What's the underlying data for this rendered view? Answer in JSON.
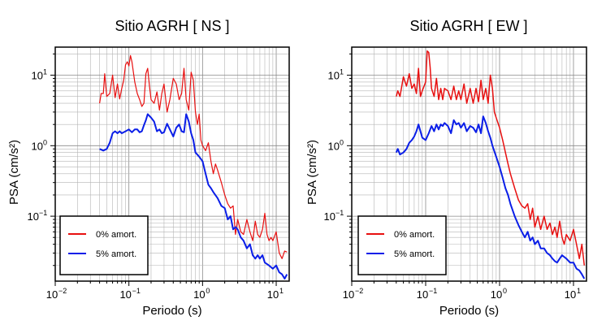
{
  "chart_data": [
    {
      "type": "line",
      "title": "Sitio AGRH [ NS ]",
      "xlabel": "Periodo (s)",
      "ylabel": "PSA (cm/s²)",
      "xscale": "log",
      "yscale": "log",
      "xlim": [
        0.01,
        15
      ],
      "ylim": [
        0.012,
        25
      ],
      "grid": true,
      "legend_position": "bottom-left",
      "x_ticks": [
        {
          "value": 0.01,
          "base": "10",
          "exp": "−2"
        },
        {
          "value": 0.1,
          "base": "10",
          "exp": "−1"
        },
        {
          "value": 1,
          "base": "10",
          "exp": "0"
        },
        {
          "value": 10,
          "base": "10",
          "exp": "1"
        }
      ],
      "y_ticks": [
        {
          "value": 0.1,
          "base": "10",
          "exp": "−1"
        },
        {
          "value": 1,
          "base": "10",
          "exp": "0"
        },
        {
          "value": 10,
          "base": "10",
          "exp": "1"
        }
      ],
      "series": [
        {
          "name": "0% amort.",
          "color": "#e81010",
          "width": 1.2,
          "x": [
            0.04,
            0.042,
            0.045,
            0.047,
            0.05,
            0.055,
            0.06,
            0.065,
            0.07,
            0.075,
            0.08,
            0.085,
            0.09,
            0.095,
            0.1,
            0.105,
            0.11,
            0.12,
            0.13,
            0.14,
            0.15,
            0.16,
            0.17,
            0.18,
            0.19,
            0.2,
            0.22,
            0.24,
            0.26,
            0.28,
            0.3,
            0.33,
            0.36,
            0.4,
            0.44,
            0.48,
            0.52,
            0.56,
            0.6,
            0.65,
            0.7,
            0.75,
            0.8,
            0.85,
            0.9,
            0.95,
            1.0,
            1.1,
            1.2,
            1.3,
            1.4,
            1.5,
            1.6,
            1.8,
            2.0,
            2.2,
            2.4,
            2.6,
            2.8,
            3.0,
            3.3,
            3.6,
            4.0,
            4.4,
            4.8,
            5.2,
            5.6,
            6.0,
            6.5,
            7.0,
            7.5,
            8.0,
            8.5,
            9.0,
            10,
            11,
            12,
            13,
            14
          ],
          "y": [
            4.0,
            5.5,
            5.5,
            10.5,
            5.0,
            5.5,
            10.0,
            4.8,
            7.5,
            4.6,
            6.5,
            8.5,
            14.0,
            15.5,
            13.5,
            19.0,
            15.5,
            8.0,
            5.5,
            4.5,
            3.6,
            4.0,
            10.5,
            12.5,
            7.0,
            4.5,
            4.0,
            5.8,
            3.2,
            5.5,
            7.5,
            3.0,
            4.5,
            9.0,
            7.5,
            4.5,
            5.5,
            12.5,
            4.5,
            3.2,
            11.0,
            8.5,
            3.0,
            2.0,
            2.8,
            1.2,
            1.0,
            0.85,
            1.1,
            0.6,
            0.4,
            0.55,
            0.45,
            0.3,
            0.2,
            0.15,
            0.13,
            0.14,
            0.055,
            0.09,
            0.06,
            0.055,
            0.09,
            0.06,
            0.045,
            0.085,
            0.055,
            0.05,
            0.065,
            0.11,
            0.055,
            0.045,
            0.05,
            0.045,
            0.06,
            0.03,
            0.025,
            0.032,
            0.031
          ]
        },
        {
          "name": "5% amort.",
          "color": "#0a1ee8",
          "width": 2.0,
          "x": [
            0.04,
            0.045,
            0.05,
            0.055,
            0.06,
            0.065,
            0.07,
            0.075,
            0.08,
            0.09,
            0.1,
            0.11,
            0.12,
            0.13,
            0.14,
            0.15,
            0.16,
            0.17,
            0.18,
            0.2,
            0.22,
            0.24,
            0.26,
            0.28,
            0.3,
            0.33,
            0.36,
            0.4,
            0.44,
            0.48,
            0.52,
            0.56,
            0.6,
            0.65,
            0.7,
            0.75,
            0.8,
            0.9,
            1.0,
            1.1,
            1.2,
            1.3,
            1.4,
            1.6,
            1.8,
            2.0,
            2.2,
            2.4,
            2.6,
            2.8,
            3.0,
            3.3,
            3.6,
            4.0,
            4.4,
            4.8,
            5.2,
            5.6,
            6.0,
            6.5,
            7.0,
            8.0,
            9.0,
            10,
            11,
            12,
            13,
            14
          ],
          "y": [
            0.9,
            0.85,
            0.9,
            1.1,
            1.5,
            1.6,
            1.5,
            1.6,
            1.5,
            1.6,
            1.7,
            1.55,
            1.7,
            1.7,
            1.55,
            1.6,
            1.95,
            2.3,
            2.8,
            2.5,
            2.2,
            1.6,
            1.7,
            1.5,
            1.55,
            2.05,
            1.7,
            1.35,
            1.8,
            2.0,
            1.6,
            1.55,
            2.8,
            2.2,
            1.5,
            1.2,
            0.8,
            0.7,
            0.6,
            0.4,
            0.28,
            0.25,
            0.22,
            0.18,
            0.14,
            0.13,
            0.09,
            0.1,
            0.065,
            0.07,
            0.065,
            0.05,
            0.045,
            0.035,
            0.04,
            0.028,
            0.025,
            0.028,
            0.025,
            0.028,
            0.022,
            0.02,
            0.018,
            0.02,
            0.016,
            0.015,
            0.013,
            0.015
          ]
        }
      ]
    },
    {
      "type": "line",
      "title": "Sitio AGRH [ EW ]",
      "xlabel": "Periodo (s)",
      "ylabel": "PSA (cm/s²)",
      "xscale": "log",
      "yscale": "log",
      "xlim": [
        0.01,
        15
      ],
      "ylim": [
        0.012,
        25
      ],
      "grid": true,
      "legend_position": "bottom-left",
      "x_ticks": [
        {
          "value": 0.01,
          "base": "10",
          "exp": "−2"
        },
        {
          "value": 0.1,
          "base": "10",
          "exp": "−1"
        },
        {
          "value": 1,
          "base": "10",
          "exp": "0"
        },
        {
          "value": 10,
          "base": "10",
          "exp": "1"
        }
      ],
      "y_ticks": [
        {
          "value": 0.1,
          "base": "10",
          "exp": "−1"
        },
        {
          "value": 1,
          "base": "10",
          "exp": "0"
        },
        {
          "value": 10,
          "base": "10",
          "exp": "1"
        }
      ],
      "series": [
        {
          "name": "0% amort.",
          "color": "#e81010",
          "width": 1.5,
          "x": [
            0.04,
            0.042,
            0.045,
            0.05,
            0.055,
            0.06,
            0.065,
            0.07,
            0.075,
            0.08,
            0.085,
            0.09,
            0.1,
            0.105,
            0.11,
            0.115,
            0.12,
            0.13,
            0.14,
            0.15,
            0.16,
            0.17,
            0.18,
            0.2,
            0.22,
            0.24,
            0.26,
            0.28,
            0.3,
            0.33,
            0.36,
            0.4,
            0.44,
            0.48,
            0.52,
            0.56,
            0.6,
            0.65,
            0.7,
            0.75,
            0.8,
            0.85,
            0.9,
            1.0,
            1.1,
            1.2,
            1.3,
            1.4,
            1.6,
            1.8,
            2.0,
            2.2,
            2.4,
            2.6,
            2.8,
            3.0,
            3.3,
            3.6,
            4.0,
            4.4,
            4.8,
            5.2,
            5.6,
            6.0,
            6.5,
            7.0,
            7.5,
            8.0,
            9.0,
            10,
            11,
            12,
            13,
            14
          ],
          "y": [
            5.0,
            6.0,
            5.0,
            9.5,
            7.0,
            10.5,
            6.5,
            7.5,
            5.5,
            12.5,
            5.0,
            6.0,
            8.0,
            22.0,
            21.0,
            13.0,
            6.5,
            5.0,
            9.0,
            4.5,
            6.5,
            4.5,
            6.5,
            6.0,
            4.5,
            7.0,
            4.5,
            6.0,
            4.5,
            7.5,
            4.0,
            6.5,
            4.0,
            6.5,
            4.2,
            8.5,
            4.5,
            6.5,
            4.0,
            10.0,
            6.5,
            3.0,
            2.5,
            1.8,
            1.2,
            0.8,
            0.55,
            0.4,
            0.25,
            0.17,
            0.14,
            0.13,
            0.15,
            0.09,
            0.13,
            0.07,
            0.1,
            0.065,
            0.1,
            0.065,
            0.08,
            0.055,
            0.07,
            0.05,
            0.085,
            0.05,
            0.04,
            0.055,
            0.045,
            0.065,
            0.04,
            0.025,
            0.04,
            0.02
          ]
        },
        {
          "name": "5% amort.",
          "color": "#0a1ee8",
          "width": 2.0,
          "x": [
            0.04,
            0.042,
            0.045,
            0.05,
            0.055,
            0.06,
            0.065,
            0.07,
            0.075,
            0.08,
            0.09,
            0.1,
            0.11,
            0.12,
            0.13,
            0.14,
            0.15,
            0.16,
            0.17,
            0.18,
            0.2,
            0.22,
            0.24,
            0.26,
            0.28,
            0.3,
            0.33,
            0.36,
            0.4,
            0.44,
            0.48,
            0.52,
            0.56,
            0.6,
            0.65,
            0.7,
            0.75,
            0.8,
            0.9,
            1.0,
            1.1,
            1.2,
            1.3,
            1.4,
            1.6,
            1.8,
            2.0,
            2.2,
            2.4,
            2.6,
            2.8,
            3.0,
            3.3,
            3.6,
            4.0,
            4.4,
            4.8,
            5.2,
            5.6,
            6.0,
            6.5,
            7.0,
            8.0,
            9.0,
            10,
            11,
            12,
            13,
            14
          ],
          "y": [
            0.8,
            0.9,
            0.75,
            0.8,
            0.9,
            1.1,
            1.2,
            1.35,
            1.6,
            2.0,
            1.3,
            1.2,
            1.5,
            1.9,
            1.6,
            2.0,
            1.7,
            2.0,
            1.9,
            2.1,
            1.9,
            1.5,
            2.3,
            2.0,
            2.1,
            1.8,
            2.1,
            1.6,
            1.9,
            1.8,
            1.55,
            2.0,
            1.5,
            2.6,
            2.1,
            1.6,
            1.3,
            1.0,
            0.7,
            0.5,
            0.35,
            0.25,
            0.2,
            0.15,
            0.1,
            0.075,
            0.06,
            0.05,
            0.06,
            0.045,
            0.05,
            0.04,
            0.045,
            0.035,
            0.035,
            0.03,
            0.028,
            0.025,
            0.023,
            0.022,
            0.025,
            0.028,
            0.025,
            0.022,
            0.022,
            0.018,
            0.017,
            0.015,
            0.013
          ]
        }
      ]
    }
  ]
}
